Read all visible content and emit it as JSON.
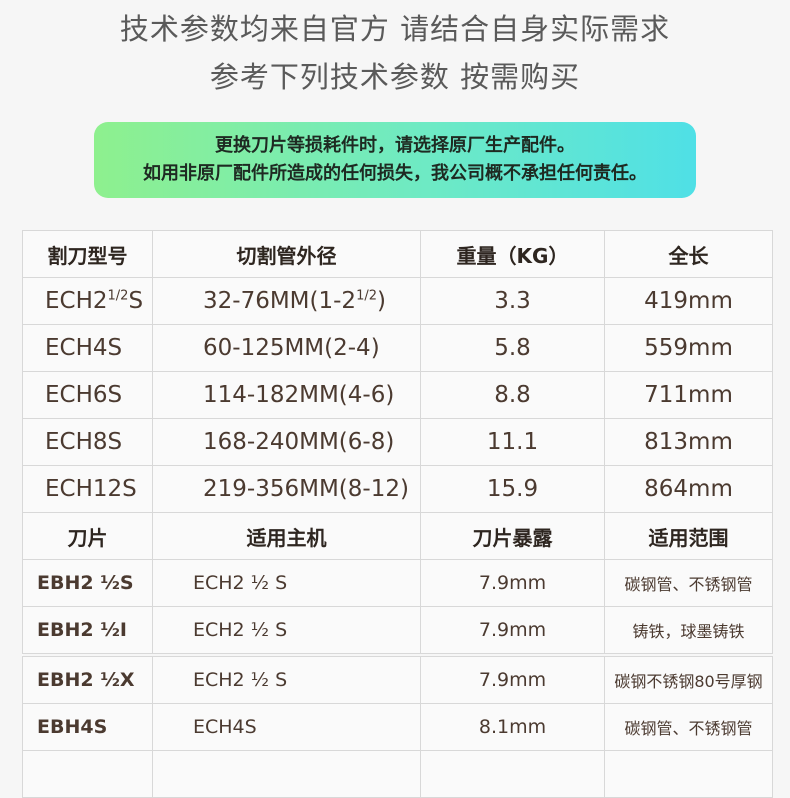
{
  "header": {
    "line1": "技术参数均来自官方 请结合自身实际需求",
    "line2": "参考下列技术参数 按需购买"
  },
  "notice": {
    "line1": "更换刀片等损耗件时，请选择原厂生产配件。",
    "line2": "如用非原厂配件所造成的任何损失，我公司概不承担任何责任。",
    "gradient": [
      "#8ef08e",
      "#4fe0e6"
    ]
  },
  "cutter_table": {
    "headers": [
      "割刀型号",
      "切割管外径",
      "重量（KG）",
      "全长"
    ],
    "rows": [
      {
        "model": "ECH2",
        "model_sup": "1/2",
        "model_suffix": "S",
        "range": "32-76MM(1-2",
        "range_sup": "1/2",
        "range_suffix": ")",
        "weight": "3.3",
        "length": "419mm"
      },
      {
        "model": "ECH4S",
        "model_sup": "",
        "model_suffix": "",
        "range": "60-125MM(2-4)",
        "range_sup": "",
        "range_suffix": "",
        "weight": "5.8",
        "length": "559mm"
      },
      {
        "model": "ECH6S",
        "model_sup": "",
        "model_suffix": "",
        "range": "114-182MM(4-6)",
        "range_sup": "",
        "range_suffix": "",
        "weight": "8.8",
        "length": "711mm"
      },
      {
        "model": "ECH8S",
        "model_sup": "",
        "model_suffix": "",
        "range": "168-240MM(6-8)",
        "range_sup": "",
        "range_suffix": "",
        "weight": "11.1",
        "length": "813mm"
      },
      {
        "model": "ECH12S",
        "model_sup": "",
        "model_suffix": "",
        "range": "219-356MM(8-12)",
        "range_sup": "",
        "range_suffix": "",
        "weight": "15.9",
        "length": "864mm"
      }
    ]
  },
  "blade_table": {
    "headers": [
      "刀片",
      "适用主机",
      "刀片暴露",
      "适用范围"
    ],
    "rows": [
      {
        "blade": "EBH2 ½S",
        "host": "ECH2 ½ S",
        "exposure": "7.9mm",
        "scope": "碳钢管、不锈钢管"
      },
      {
        "blade": "EBH2 ½I",
        "host": "ECH2 ½ S",
        "exposure": "7.9mm",
        "scope": "铸铁，球墨铸铁"
      },
      {
        "blade": "EBH2 ½X",
        "host": "ECH2 ½ S",
        "exposure": "7.9mm",
        "scope": "碳钢不锈钢80号厚钢"
      },
      {
        "blade": "EBH4S",
        "host": "ECH4S",
        "exposure": "8.1mm",
        "scope": "碳钢管、不锈钢管"
      }
    ]
  }
}
